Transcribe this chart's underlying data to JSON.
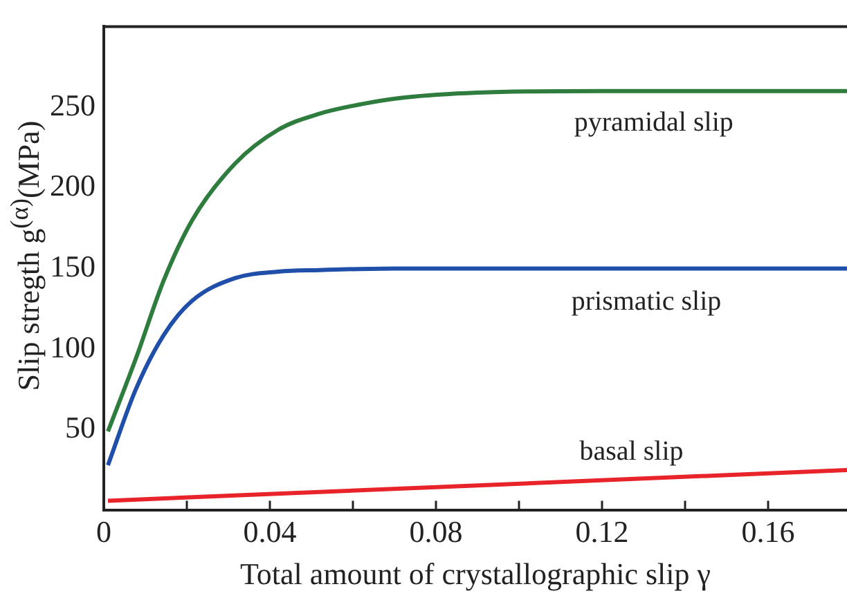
{
  "chart_data": {
    "type": "line",
    "xlabel": "Total amount of crystallographic slip γ",
    "ylabel": "Slip stregth  g$^{(α)}$(MPa)",
    "xlim": [
      0,
      0.179
    ],
    "xticks": [
      0,
      {
        "value": 0.02,
        "label": null
      },
      0.04,
      {
        "value": 0.06,
        "label": null
      },
      0.08,
      {
        "value": 0.1,
        "label": null
      },
      0.12,
      {
        "value": 0.14,
        "label": null
      },
      0.16
    ],
    "ylim": [
      0,
      300
    ],
    "yticks": [
      50,
      100,
      150,
      200,
      250
    ],
    "grid": false,
    "legend": false,
    "marker": "none",
    "line_style": "solid",
    "series": [
      {
        "type": "line",
        "color": "#2e7d3e",
        "x": [
          0.001,
          0.0077,
          0.0145,
          0.0213,
          0.0316,
          0.042,
          0.052,
          0.0623,
          0.0725,
          0.09,
          0.12,
          0.179
        ],
        "values": [
          49,
          94,
          143,
          180,
          215,
          236,
          246,
          252,
          256,
          259,
          260,
          260
        ]
      },
      {
        "type": "line",
        "color": "#1f4fa8",
        "x": [
          0.001,
          0.0077,
          0.0145,
          0.0213,
          0.0316,
          0.042,
          0.052,
          0.07,
          0.179
        ],
        "values": [
          28,
          75,
          109,
          130,
          144,
          148,
          149,
          150,
          150
        ]
      },
      {
        "type": "line",
        "color": "#e8232a",
        "x": [
          0.001,
          0.179
        ],
        "values": [
          6,
          25
        ]
      }
    ],
    "annotations": [
      "pyramidal slip",
      "prismatic slip",
      "basal slip"
    ]
  }
}
